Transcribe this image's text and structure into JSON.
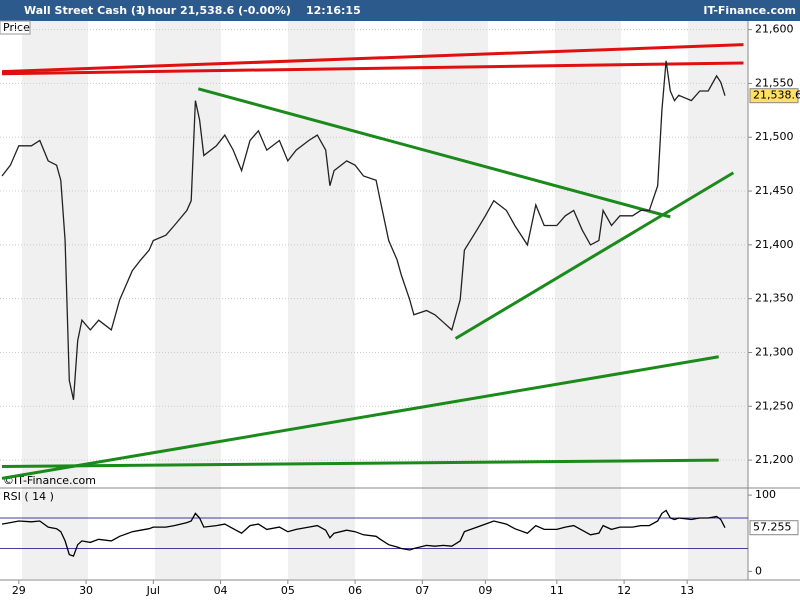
{
  "header": {
    "instrument": "Wall Street Cash (-)",
    "interval": "1 hour",
    "quote": "21,538.6 (-0.00%)",
    "time": "12:16:15",
    "brand": "IT-Finance.com"
  },
  "chart_data": [
    {
      "type": "line",
      "label": "Price",
      "watermark": "©IT-Finance.com",
      "color": "#222222",
      "xlim": [
        0,
        177
      ],
      "ylim": [
        21175,
        21608
      ],
      "grid": true,
      "xticks": [
        {
          "value": 4,
          "label": "29"
        },
        {
          "value": 20,
          "label": "30"
        },
        {
          "value": 36,
          "label": "Jul"
        },
        {
          "value": 52,
          "label": "04"
        },
        {
          "value": 68,
          "label": "05"
        },
        {
          "value": 84,
          "label": "06"
        },
        {
          "value": 100,
          "label": "07"
        },
        {
          "value": 115,
          "label": "09"
        },
        {
          "value": 132,
          "label": "11"
        },
        {
          "value": 148,
          "label": "12"
        },
        {
          "value": 163,
          "label": "13"
        }
      ],
      "yticks": [
        {
          "value": 21200,
          "label": "21,200"
        },
        {
          "value": 21250,
          "label": "21,250"
        },
        {
          "value": 21300,
          "label": "21,300"
        },
        {
          "value": 21350,
          "label": "21,350"
        },
        {
          "value": 21400,
          "label": "21,400"
        },
        {
          "value": 21450,
          "label": "21,450"
        },
        {
          "value": 21500,
          "label": "21,500"
        },
        {
          "value": 21550,
          "label": "21,550"
        },
        {
          "value": 21600,
          "label": "21,600"
        }
      ],
      "x": [
        0,
        2,
        4,
        7,
        9,
        11,
        13,
        14,
        15,
        16,
        17,
        18,
        19,
        21,
        23,
        26,
        28,
        29,
        31,
        33,
        35,
        36,
        39,
        41,
        44,
        45,
        46,
        47,
        48,
        51,
        53,
        55,
        57,
        59,
        61,
        63,
        66,
        68,
        70,
        73,
        75,
        77,
        78,
        79,
        82,
        84,
        86,
        89,
        90,
        92,
        94,
        95,
        97,
        98,
        101,
        103,
        105,
        107,
        109,
        110,
        113,
        115,
        117,
        120,
        122,
        125,
        127,
        129,
        132,
        134,
        136,
        138,
        140,
        142,
        143,
        145,
        147,
        150,
        152,
        154,
        156,
        157,
        158,
        159,
        160,
        161,
        164,
        166,
        168,
        170,
        171,
        172
      ],
      "values": [
        21464,
        21474,
        21492,
        21492,
        21497,
        21478,
        21474,
        21460,
        21404,
        21274,
        21256,
        21311,
        21330,
        21321,
        21330,
        21321,
        21349,
        21358,
        21376,
        21386,
        21395,
        21404,
        21409,
        21418,
        21432,
        21441,
        21534,
        21516,
        21483,
        21492,
        21502,
        21488,
        21469,
        21497,
        21506,
        21488,
        21497,
        21478,
        21488,
        21497,
        21502,
        21488,
        21455,
        21469,
        21478,
        21474,
        21464,
        21460,
        21441,
        21404,
        21386,
        21372,
        21349,
        21335,
        21339,
        21335,
        21328,
        21321,
        21349,
        21395,
        21414,
        21427,
        21441,
        21432,
        21418,
        21400,
        21437,
        21418,
        21418,
        21427,
        21432,
        21414,
        21400,
        21404,
        21432,
        21418,
        21427,
        21427,
        21432,
        21432,
        21455,
        21525,
        21571,
        21543,
        21534,
        21539,
        21534,
        21543,
        21543,
        21557,
        21551,
        21538.6
      ],
      "current": {
        "value": 21538.6,
        "label": "21,538.6"
      },
      "trend_lines": [
        {
          "color": "#e01010",
          "x": [
            0,
            176.4
          ],
          "y": [
            21561,
            21586
          ]
        },
        {
          "color": "#e01010",
          "x": [
            0,
            176.4
          ],
          "y": [
            21559,
            21569
          ]
        },
        {
          "color": "#1a8a1a",
          "x": [
            46.7,
            159
          ],
          "y": [
            21545,
            21426
          ]
        },
        {
          "color": "#1a8a1a",
          "x": [
            107.9,
            174
          ],
          "y": [
            21313,
            21467
          ]
        },
        {
          "color": "#1a8a1a",
          "x": [
            0,
            170.5
          ],
          "y": [
            21183,
            21296
          ]
        },
        {
          "color": "#1a8a1a",
          "x": [
            0,
            170.5
          ],
          "y": [
            21194,
            21200
          ]
        }
      ]
    },
    {
      "type": "line",
      "label": "RSI ( 14 )",
      "color": "#000000",
      "xlim": [
        0,
        177
      ],
      "ylim": [
        -10,
        108
      ],
      "yticks": [
        0,
        100
      ],
      "levels": [
        30,
        70
      ],
      "current": 57.255,
      "x": [
        0,
        2,
        4,
        7,
        9,
        11,
        13,
        14,
        15,
        16,
        17,
        18,
        19,
        21,
        23,
        26,
        28,
        29,
        31,
        33,
        35,
        36,
        39,
        41,
        44,
        45,
        46,
        47,
        48,
        51,
        53,
        55,
        57,
        59,
        61,
        63,
        66,
        68,
        70,
        73,
        75,
        77,
        78,
        79,
        82,
        84,
        86,
        89,
        90,
        92,
        94,
        95,
        97,
        98,
        101,
        103,
        105,
        107,
        109,
        110,
        113,
        115,
        117,
        120,
        122,
        125,
        127,
        129,
        132,
        134,
        136,
        138,
        140,
        142,
        143,
        145,
        147,
        150,
        152,
        154,
        156,
        157,
        158,
        159,
        160,
        161,
        164,
        166,
        168,
        170,
        171,
        172
      ],
      "values": [
        62,
        64,
        66,
        65,
        66,
        58,
        56,
        52,
        40,
        22,
        20,
        35,
        40,
        38,
        42,
        40,
        46,
        48,
        52,
        54,
        56,
        58,
        58,
        60,
        64,
        66,
        76,
        70,
        58,
        60,
        62,
        56,
        50,
        60,
        62,
        55,
        58,
        52,
        55,
        58,
        60,
        54,
        44,
        50,
        54,
        52,
        48,
        46,
        42,
        35,
        32,
        30,
        28,
        30,
        34,
        33,
        34,
        33,
        40,
        52,
        58,
        62,
        66,
        62,
        56,
        50,
        60,
        55,
        55,
        58,
        60,
        54,
        48,
        50,
        60,
        55,
        58,
        58,
        60,
        60,
        66,
        76,
        80,
        70,
        68,
        70,
        68,
        70,
        70,
        72,
        68,
        57.255
      ]
    }
  ]
}
